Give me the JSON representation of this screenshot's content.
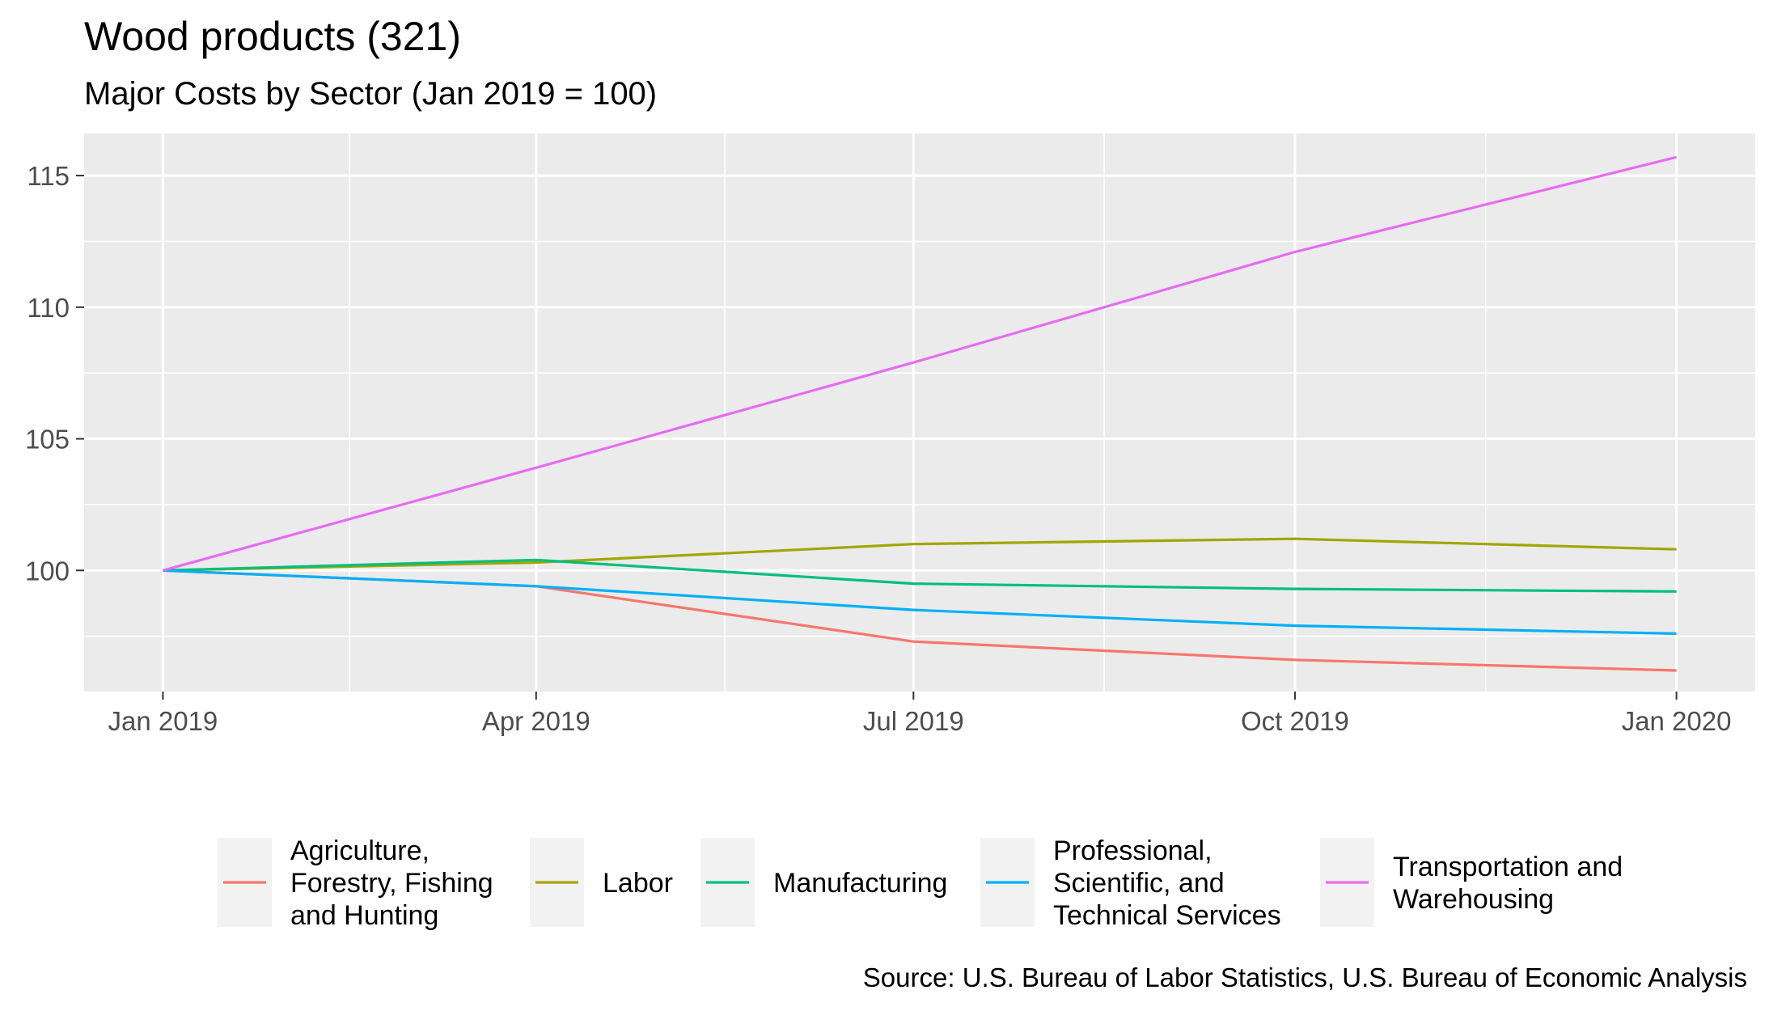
{
  "chart_data": {
    "type": "line",
    "title": "Wood products (321)",
    "subtitle": "Major Costs by Sector (Jan 2019 = 100)",
    "caption": "Source: U.S. Bureau of Labor Statistics, U.S. Bureau of Economic Analysis",
    "xlabel": "",
    "ylabel": "",
    "x": [
      "2019-01-01",
      "2019-04-01",
      "2019-07-01",
      "2019-10-01",
      "2020-01-01"
    ],
    "x_tick_labels": [
      "Jan 2019",
      "Apr 2019",
      "Jul 2019",
      "Oct 2019",
      "Jan 2020"
    ],
    "xlim": [
      "2018-12-13",
      "2020-01-20"
    ],
    "ylim": [
      95.4,
      116.6
    ],
    "y_ticks": [
      100,
      105,
      110,
      115
    ],
    "grid": true,
    "legend_position": "bottom",
    "series": [
      {
        "name": "Agriculture,\nForestry, Fishing\nand Hunting",
        "color": "#F8766D",
        "values": [
          100,
          99.4,
          97.3,
          96.6,
          96.2
        ]
      },
      {
        "name": "Labor",
        "color": "#A3A500",
        "values": [
          100,
          100.3,
          101.0,
          101.2,
          100.8
        ]
      },
      {
        "name": "Manufacturing",
        "color": "#00BF7D",
        "values": [
          100,
          100.4,
          99.5,
          99.3,
          99.2
        ]
      },
      {
        "name": "Professional,\nScientific, and\nTechnical Services",
        "color": "#00B0F6",
        "values": [
          100,
          99.4,
          98.5,
          97.9,
          97.6
        ]
      },
      {
        "name": "Transportation and\nWarehousing",
        "color": "#E76BF3",
        "values": [
          100,
          103.9,
          107.9,
          112.1,
          115.7
        ]
      }
    ]
  }
}
